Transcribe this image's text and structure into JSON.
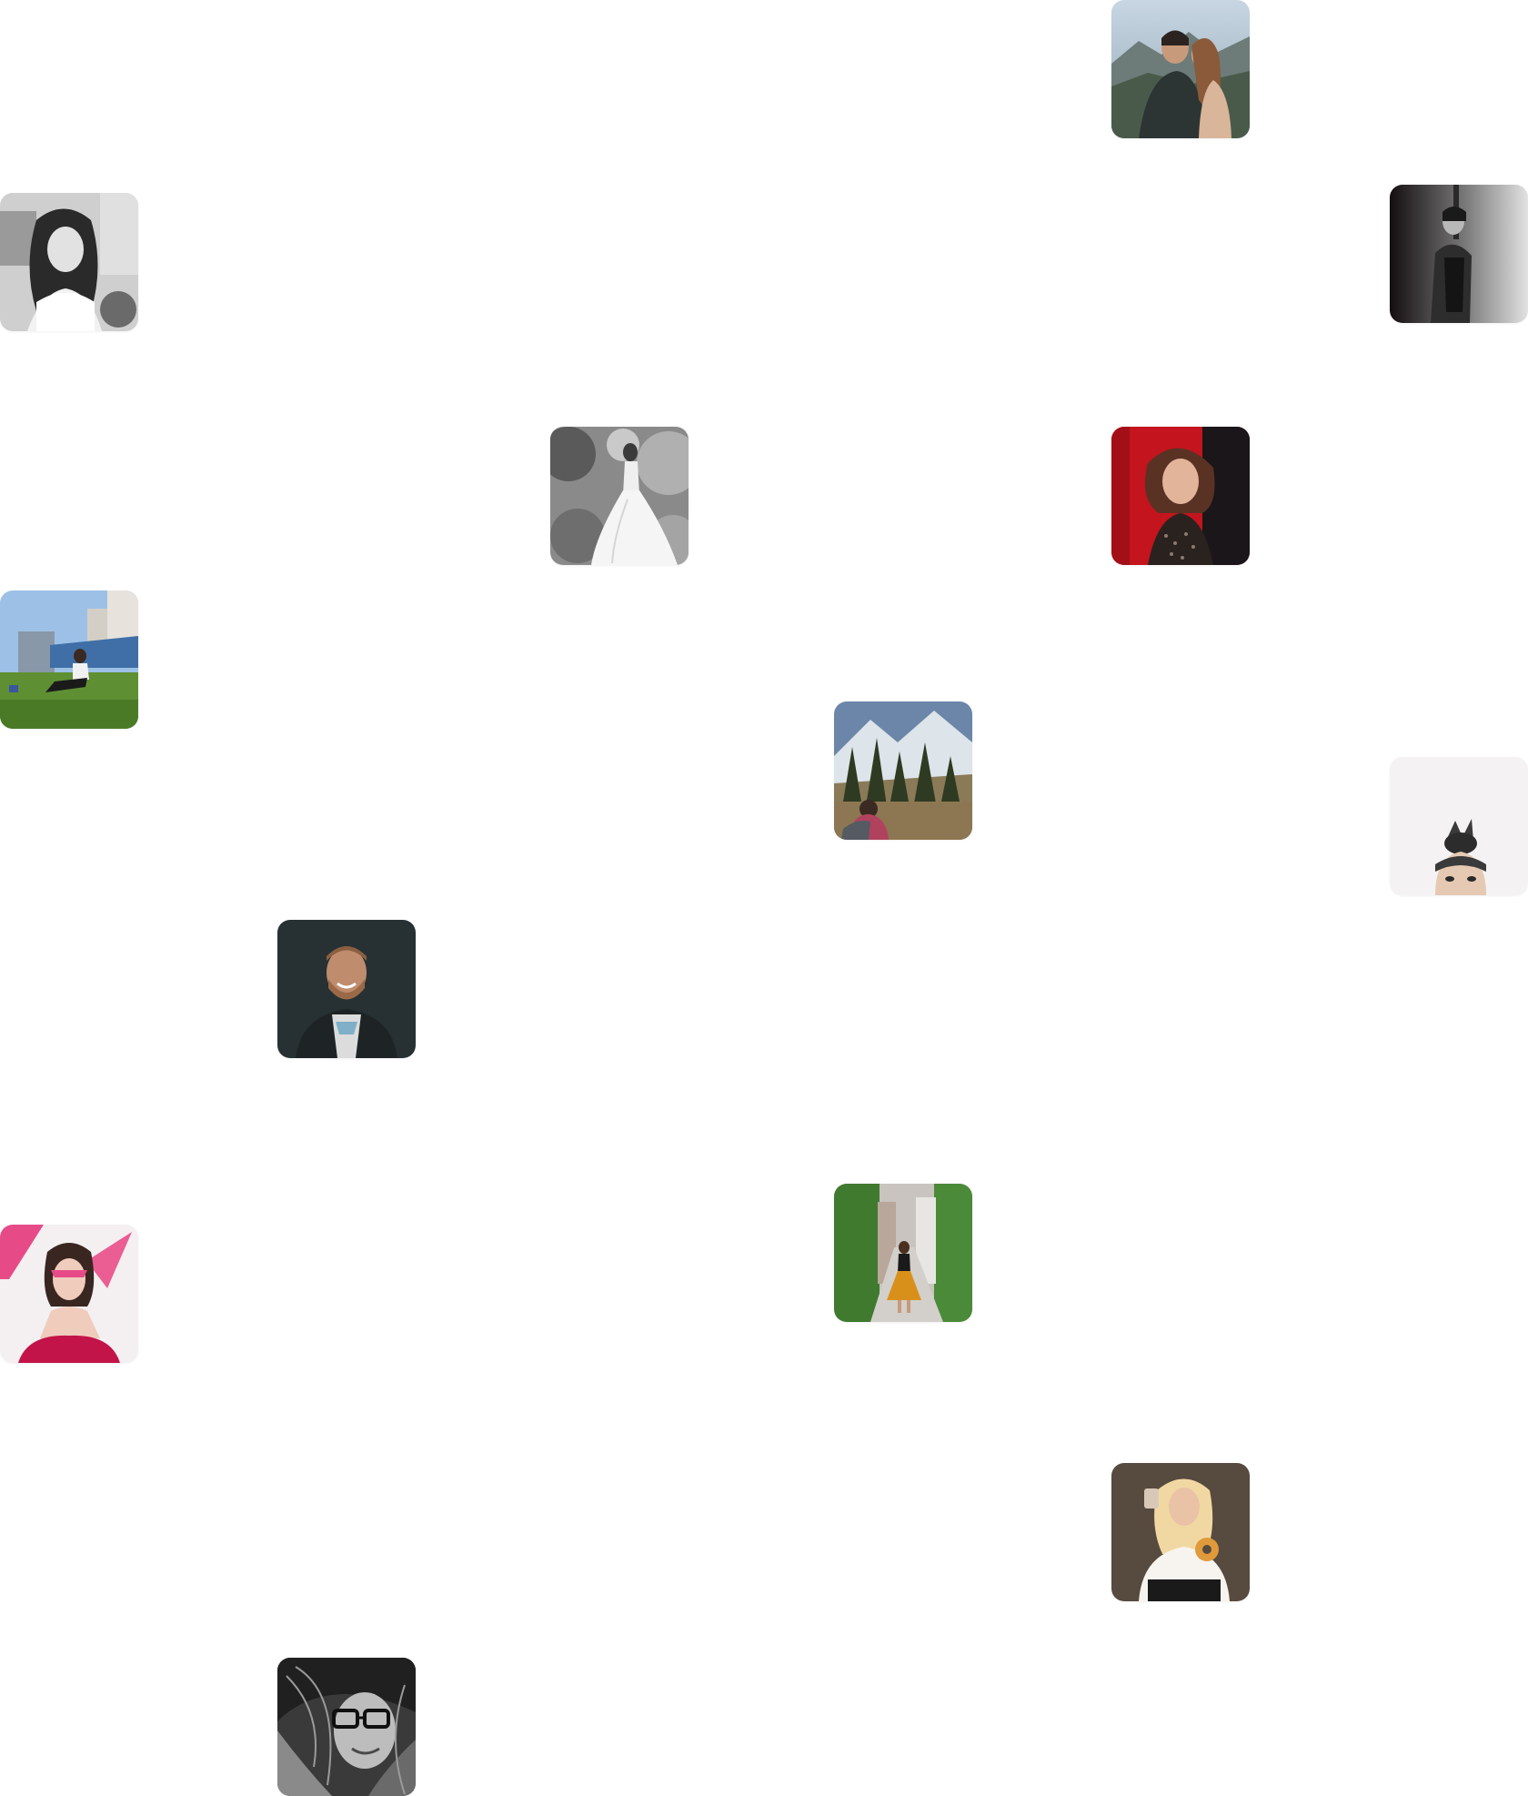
{
  "page": {
    "background_color": "#ffffff"
  },
  "gallery": {
    "photos": [
      {
        "id": "couple-mountains",
        "alt": "couple-mountains-photo",
        "palette": [
          "#b8c7d4",
          "#2f3a36",
          "#a0735a"
        ]
      },
      {
        "id": "bw-woman-hair",
        "alt": "bw-woman-portrait-photo",
        "palette": [
          "#d9d9d9",
          "#2b2b2b",
          "#eeeeee"
        ]
      },
      {
        "id": "bw-woman-wall",
        "alt": "bw-woman-leaning-wall-photo",
        "palette": [
          "#1b1416",
          "#8c8c8c",
          "#d8d8d8"
        ]
      },
      {
        "id": "bw-bride-forest",
        "alt": "bw-bride-forest-photo",
        "palette": [
          "#7a7a7a",
          "#f2f2f2",
          "#3a3a3a"
        ]
      },
      {
        "id": "woman-red-curtain",
        "alt": "woman-red-curtain-photo",
        "palette": [
          "#c4141d",
          "#1a1619",
          "#6b4a3e"
        ]
      },
      {
        "id": "woman-grass",
        "alt": "woman-sitting-grass-photo",
        "palette": [
          "#9dc1e6",
          "#4f7d2a",
          "#e7e3dc"
        ]
      },
      {
        "id": "hiker-mountains",
        "alt": "hiker-mountains-photo",
        "palette": [
          "#dde4ea",
          "#3e4a2b",
          "#b0425e"
        ]
      },
      {
        "id": "man-hair-bun",
        "alt": "man-hair-bun-photo",
        "palette": [
          "#f4f2f3",
          "#3a3a3a",
          "#e5c9b3"
        ]
      },
      {
        "id": "man-smiling",
        "alt": "man-smiling-dark-photo",
        "palette": [
          "#273134",
          "#c08c6e",
          "#dcdcdc"
        ]
      },
      {
        "id": "pink-paper",
        "alt": "woman-pink-paper-photo",
        "palette": [
          "#f4f0f1",
          "#e64b88",
          "#c21448"
        ]
      },
      {
        "id": "woman-street",
        "alt": "woman-yellow-skirt-street-photo",
        "palette": [
          "#3f7a2f",
          "#c9c4c0",
          "#d9901b"
        ]
      },
      {
        "id": "woman-donut",
        "alt": "woman-coffee-donut-photo",
        "palette": [
          "#574a3f",
          "#f1d8a3",
          "#f7f3ee"
        ]
      },
      {
        "id": "bw-glasses",
        "alt": "bw-woman-glasses-photo",
        "palette": [
          "#3a3a3a",
          "#bdbdbd",
          "#101010"
        ]
      }
    ]
  }
}
